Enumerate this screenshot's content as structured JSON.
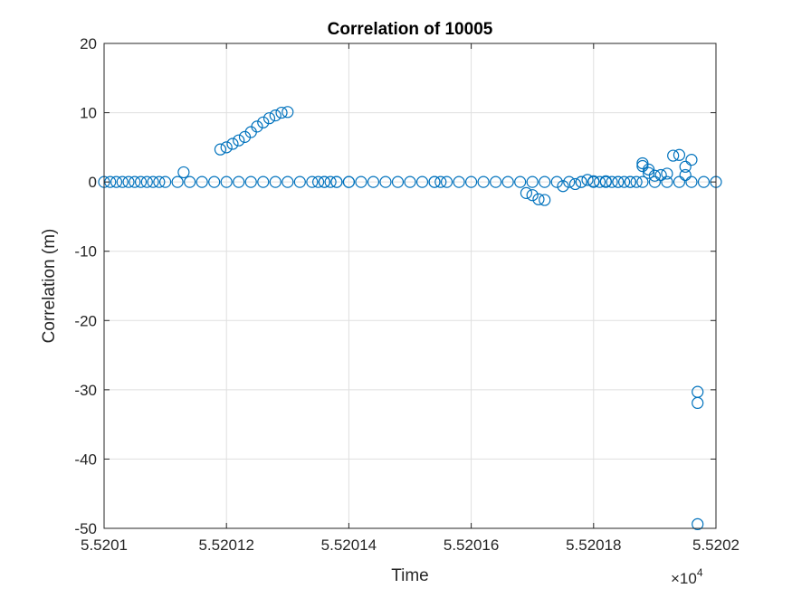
{
  "chart_data": {
    "type": "scatter",
    "title": "Correlation of 10005",
    "xlabel": "Time",
    "ylabel": "Correlation (m)",
    "x_exponent_label": "×10",
    "x_exponent_power": "4",
    "xlim": [
      5.5201,
      5.5202
    ],
    "ylim": [
      -50,
      20
    ],
    "xticks": [
      {
        "value": 5.5201,
        "label": "5.5201"
      },
      {
        "value": 5.52012,
        "label": "5.52012"
      },
      {
        "value": 5.52014,
        "label": "5.52014"
      },
      {
        "value": 5.52016,
        "label": "5.52016"
      },
      {
        "value": 5.52018,
        "label": "5.52018"
      },
      {
        "value": 5.5202,
        "label": "5.5202"
      }
    ],
    "yticks": [
      {
        "value": 20,
        "label": "20"
      },
      {
        "value": 10,
        "label": "10"
      },
      {
        "value": 0,
        "label": "0"
      },
      {
        "value": -10,
        "label": "-10"
      },
      {
        "value": -20,
        "label": "-20"
      },
      {
        "value": -30,
        "label": "-30"
      },
      {
        "value": -40,
        "label": "-40"
      },
      {
        "value": -50,
        "label": "-50"
      }
    ],
    "grid": true,
    "marker": "open-circle",
    "color": "#0072BD",
    "points": [
      {
        "x": 5.5201,
        "y": 0.0
      },
      {
        "x": 5.520101,
        "y": 0.0
      },
      {
        "x": 5.520102,
        "y": 0.0
      },
      {
        "x": 5.520103,
        "y": 0.0
      },
      {
        "x": 5.520104,
        "y": 0.0
      },
      {
        "x": 5.520105,
        "y": 0.0
      },
      {
        "x": 5.520106,
        "y": 0.0
      },
      {
        "x": 5.520107,
        "y": 0.0
      },
      {
        "x": 5.520108,
        "y": 0.0
      },
      {
        "x": 5.520109,
        "y": 0.0
      },
      {
        "x": 5.52011,
        "y": 0.0
      },
      {
        "x": 5.520112,
        "y": 0.0
      },
      {
        "x": 5.520114,
        "y": 0.0
      },
      {
        "x": 5.520116,
        "y": 0.0
      },
      {
        "x": 5.520118,
        "y": 0.0
      },
      {
        "x": 5.52012,
        "y": 0.0
      },
      {
        "x": 5.520122,
        "y": 0.0
      },
      {
        "x": 5.520124,
        "y": 0.0
      },
      {
        "x": 5.520126,
        "y": 0.0
      },
      {
        "x": 5.520128,
        "y": 0.0
      },
      {
        "x": 5.52013,
        "y": 0.0
      },
      {
        "x": 5.520132,
        "y": 0.0
      },
      {
        "x": 5.520134,
        "y": 0.0
      },
      {
        "x": 5.520136,
        "y": 0.0
      },
      {
        "x": 5.520138,
        "y": 0.0
      },
      {
        "x": 5.52014,
        "y": 0.0
      },
      {
        "x": 5.520142,
        "y": 0.0
      },
      {
        "x": 5.520144,
        "y": 0.0
      },
      {
        "x": 5.520146,
        "y": 0.0
      },
      {
        "x": 5.520148,
        "y": 0.0
      },
      {
        "x": 5.52015,
        "y": 0.0
      },
      {
        "x": 5.520152,
        "y": 0.0
      },
      {
        "x": 5.520154,
        "y": 0.0
      },
      {
        "x": 5.520156,
        "y": 0.0
      },
      {
        "x": 5.520158,
        "y": 0.0
      },
      {
        "x": 5.52016,
        "y": 0.0
      },
      {
        "x": 5.520162,
        "y": 0.0
      },
      {
        "x": 5.520164,
        "y": 0.0
      },
      {
        "x": 5.520166,
        "y": 0.0
      },
      {
        "x": 5.520168,
        "y": 0.0
      },
      {
        "x": 5.52017,
        "y": 0.0
      },
      {
        "x": 5.520172,
        "y": 0.0
      },
      {
        "x": 5.520174,
        "y": 0.0
      },
      {
        "x": 5.520176,
        "y": 0.0
      },
      {
        "x": 5.520178,
        "y": 0.0
      },
      {
        "x": 5.52018,
        "y": 0.0
      },
      {
        "x": 5.520182,
        "y": 0.0
      },
      {
        "x": 5.520184,
        "y": 0.0
      },
      {
        "x": 5.520186,
        "y": 0.0
      },
      {
        "x": 5.520188,
        "y": 0.0
      },
      {
        "x": 5.52019,
        "y": 0.0
      },
      {
        "x": 5.520192,
        "y": 0.0
      },
      {
        "x": 5.520194,
        "y": 0.0
      },
      {
        "x": 5.520196,
        "y": 0.0
      },
      {
        "x": 5.520198,
        "y": 0.0
      },
      {
        "x": 5.5202,
        "y": 0.0
      },
      {
        "x": 5.520119,
        "y": 4.7
      },
      {
        "x": 5.52012,
        "y": 5.0
      },
      {
        "x": 5.520121,
        "y": 5.5
      },
      {
        "x": 5.520122,
        "y": 6.0
      },
      {
        "x": 5.520123,
        "y": 6.5
      },
      {
        "x": 5.520124,
        "y": 7.2
      },
      {
        "x": 5.520125,
        "y": 8.0
      },
      {
        "x": 5.520126,
        "y": 8.6
      },
      {
        "x": 5.520127,
        "y": 9.2
      },
      {
        "x": 5.520128,
        "y": 9.6
      },
      {
        "x": 5.520129,
        "y": 10.0
      },
      {
        "x": 5.52013,
        "y": 10.1
      },
      {
        "x": 5.520113,
        "y": 1.4
      },
      {
        "x": 5.520135,
        "y": 0.0
      },
      {
        "x": 5.520136,
        "y": 0.0
      },
      {
        "x": 5.520137,
        "y": 0.0
      },
      {
        "x": 5.520138,
        "y": 0.0
      },
      {
        "x": 5.52014,
        "y": 0.0
      },
      {
        "x": 5.520154,
        "y": 0.0
      },
      {
        "x": 5.520155,
        "y": 0.0
      },
      {
        "x": 5.520169,
        "y": -1.6
      },
      {
        "x": 5.52017,
        "y": -1.9
      },
      {
        "x": 5.520171,
        "y": -2.5
      },
      {
        "x": 5.520172,
        "y": -2.6
      },
      {
        "x": 5.520175,
        "y": -0.6
      },
      {
        "x": 5.520177,
        "y": -0.3
      },
      {
        "x": 5.520178,
        "y": 0.0
      },
      {
        "x": 5.520179,
        "y": 0.3
      },
      {
        "x": 5.52018,
        "y": 0.1
      },
      {
        "x": 5.520181,
        "y": 0.0
      },
      {
        "x": 5.520182,
        "y": 0.1
      },
      {
        "x": 5.520183,
        "y": 0.0
      },
      {
        "x": 5.520184,
        "y": 0.0
      },
      {
        "x": 5.520185,
        "y": 0.0
      },
      {
        "x": 5.520186,
        "y": 0.0
      },
      {
        "x": 5.520187,
        "y": 0.0
      },
      {
        "x": 5.520188,
        "y": 2.7
      },
      {
        "x": 5.520188,
        "y": 2.3
      },
      {
        "x": 5.520189,
        "y": 1.8
      },
      {
        "x": 5.520189,
        "y": 1.3
      },
      {
        "x": 5.52019,
        "y": 0.9
      },
      {
        "x": 5.520191,
        "y": 1.0
      },
      {
        "x": 5.520192,
        "y": 1.2
      },
      {
        "x": 5.520193,
        "y": 3.8
      },
      {
        "x": 5.520194,
        "y": 3.9
      },
      {
        "x": 5.520195,
        "y": 1.0
      },
      {
        "x": 5.520195,
        "y": 2.2
      },
      {
        "x": 5.520196,
        "y": 3.2
      },
      {
        "x": 5.520197,
        "y": -30.3
      },
      {
        "x": 5.520197,
        "y": -31.9
      },
      {
        "x": 5.520197,
        "y": -49.4
      }
    ]
  }
}
